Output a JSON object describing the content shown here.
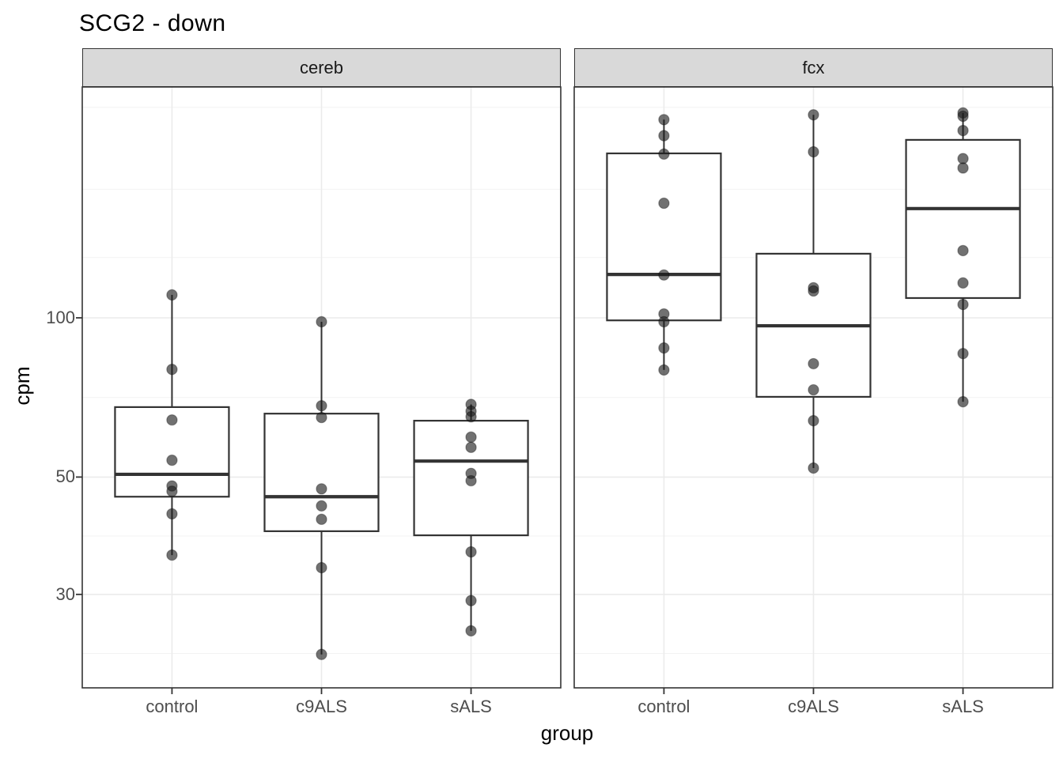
{
  "chart_data": {
    "type": "boxplot",
    "title": "SCG2 - down",
    "xlabel": "group",
    "ylabel": "cpm",
    "y_scale": "log10",
    "y_tick_labels": [
      "100",
      "50",
      "30"
    ],
    "y_tick_values": [
      100,
      50,
      30
    ],
    "y_minor_gridline_values": [
      250,
      175,
      130,
      70.7,
      38.7,
      23.2
    ],
    "x_categories": [
      "control",
      "c9ALS",
      "sALS"
    ],
    "facets": [
      {
        "label": "cereb",
        "boxes": [
          {
            "group": "control",
            "whisker_low": 35.6,
            "q1": 45.9,
            "median": 50.6,
            "q3": 67.8,
            "whisker_high": 110.5,
            "points": [
              110.5,
              79.9,
              64.1,
              53.8,
              48.1,
              47.0,
              42.6,
              35.6
            ]
          },
          {
            "group": "c9ALS",
            "whisker_low": 23.1,
            "q1": 39.5,
            "median": 45.9,
            "q3": 65.9,
            "whisker_high": 98.3,
            "points": [
              98.3,
              68.2,
              64.8,
              47.5,
              44.1,
              41.6,
              33.7,
              23.1
            ]
          },
          {
            "group": "sALS",
            "whisker_low": 25.6,
            "q1": 38.8,
            "median": 53.6,
            "q3": 63.9,
            "whisker_high": 68.6,
            "points": [
              68.6,
              66.6,
              65.0,
              59.5,
              56.9,
              50.8,
              49.2,
              36.1,
              29.2,
              25.6
            ]
          }
        ]
      },
      {
        "label": "fcx",
        "boxes": [
          {
            "group": "control",
            "whisker_low": 79.7,
            "q1": 98.9,
            "median": 120.8,
            "q3": 204.6,
            "whisker_high": 237,
            "points": [
              237,
              221,
              204,
              164.7,
              120.5,
              101.7,
              98.3,
              87.7,
              79.7
            ]
          },
          {
            "group": "c9ALS",
            "whisker_low": 52.0,
            "q1": 70.9,
            "median": 96.6,
            "q3": 132.2,
            "whisker_high": 242,
            "points": [
              242,
              206,
              114,
              112.4,
              81.9,
              73.1,
              63.9,
              52.0
            ]
          },
          {
            "group": "sALS",
            "whisker_low": 69.4,
            "q1": 109,
            "median": 160.9,
            "q3": 217,
            "whisker_high": 244,
            "points": [
              244,
              240.5,
              226,
              200,
              192,
              134,
              116.4,
              106,
              85.6,
              69.4
            ]
          }
        ]
      }
    ],
    "colors": {
      "strip_bg": "#D9D9D9",
      "border": "#333333",
      "grid_major": "#EBEBEB",
      "grid_minor": "#F3F3F3",
      "box_stroke": "#333333",
      "point": "#1a1a1a",
      "tick_label": "#4D4D4D",
      "text": "#000000"
    }
  }
}
